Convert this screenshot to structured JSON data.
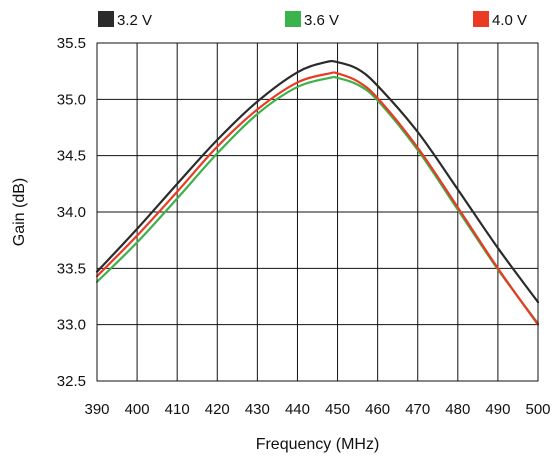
{
  "chart_data": {
    "type": "line",
    "xlabel": "Frequency (MHz)",
    "ylabel": "Gain (dB)",
    "xlim": [
      390,
      500
    ],
    "ylim": [
      32.5,
      35.5
    ],
    "xticks": [
      390,
      400,
      410,
      420,
      430,
      440,
      450,
      460,
      470,
      480,
      490,
      500
    ],
    "xtick_labels": [
      "390",
      "400",
      "410",
      "420",
      "430",
      "440",
      "450",
      "460",
      "470",
      "480",
      "490",
      "500"
    ],
    "yticks": [
      32.5,
      33.0,
      33.5,
      34.0,
      34.5,
      35.0,
      35.5
    ],
    "ytick_labels": [
      "32.5",
      "33.0",
      "33.5",
      "34.0",
      "34.5",
      "35.0",
      "35.5"
    ],
    "grid": true,
    "legend_position": "top",
    "series": [
      {
        "name": "3.2 V",
        "color": "#2b2b2b",
        "points": [
          [
            390,
            33.47
          ],
          [
            400,
            33.85
          ],
          [
            410,
            34.25
          ],
          [
            420,
            34.64
          ],
          [
            430,
            34.98
          ],
          [
            440,
            35.24
          ],
          [
            447,
            35.33
          ],
          [
            450,
            35.33
          ],
          [
            455,
            35.27
          ],
          [
            460,
            35.12
          ],
          [
            470,
            34.71
          ],
          [
            480,
            34.2
          ],
          [
            490,
            33.68
          ],
          [
            500,
            33.2
          ]
        ]
      },
      {
        "name": "3.6 V",
        "color": "#3bb24a",
        "points": [
          [
            390,
            33.38
          ],
          [
            400,
            33.73
          ],
          [
            410,
            34.12
          ],
          [
            420,
            34.52
          ],
          [
            430,
            34.87
          ],
          [
            440,
            35.11
          ],
          [
            448,
            35.19
          ],
          [
            450,
            35.19
          ],
          [
            455,
            35.13
          ],
          [
            460,
            34.99
          ],
          [
            470,
            34.55
          ],
          [
            480,
            34.02
          ],
          [
            490,
            33.49
          ],
          [
            500,
            33.01
          ]
        ]
      },
      {
        "name": "4.0 V",
        "color": "#ea3a24",
        "points": [
          [
            390,
            33.43
          ],
          [
            400,
            33.79
          ],
          [
            410,
            34.18
          ],
          [
            420,
            34.58
          ],
          [
            430,
            34.91
          ],
          [
            440,
            35.15
          ],
          [
            448,
            35.23
          ],
          [
            450,
            35.23
          ],
          [
            455,
            35.16
          ],
          [
            460,
            35.01
          ],
          [
            470,
            34.57
          ],
          [
            480,
            34.04
          ],
          [
            490,
            33.5
          ],
          [
            500,
            33.0
          ]
        ]
      }
    ]
  }
}
